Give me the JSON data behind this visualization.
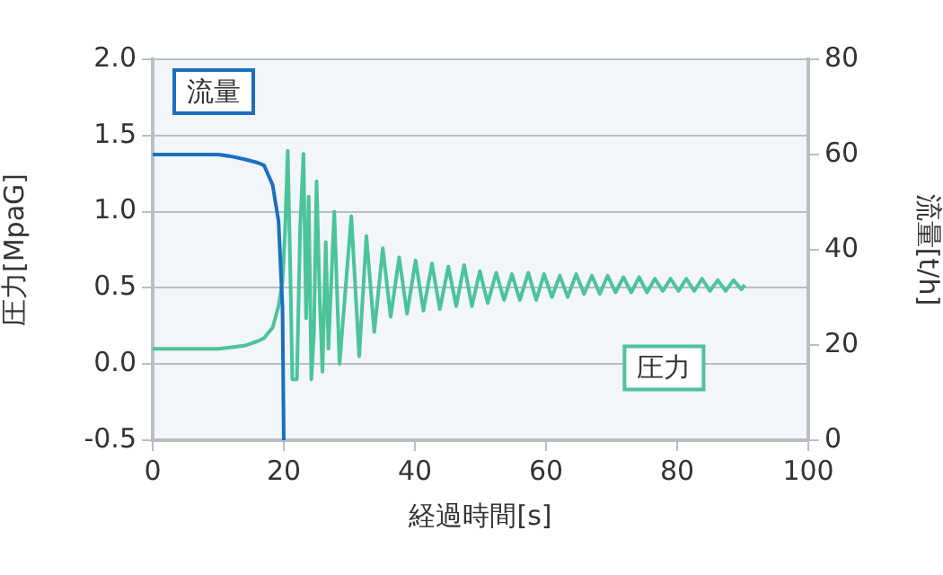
{
  "chart_data": {
    "type": "line",
    "xlabel": "経過時間[s]",
    "ylabel": "圧力[MpaG]",
    "y2label": "流量[t/h]",
    "xlim": [
      0,
      100
    ],
    "xticks": [
      0,
      20,
      40,
      60,
      80,
      100
    ],
    "ylim": [
      -0.5,
      2.0
    ],
    "yticks": [
      {
        "value": -0.5,
        "label": "-0.5"
      },
      {
        "value": 0,
        "label": "0.0"
      },
      {
        "value": 0.5,
        "label": "0.5"
      },
      {
        "value": 1,
        "label": "1.0"
      },
      {
        "value": 1.5,
        "label": "1.5"
      },
      {
        "value": 2,
        "label": "2.0"
      }
    ],
    "y2lim": [
      0,
      80
    ],
    "y2ticks": [
      0,
      20,
      40,
      60,
      80
    ],
    "grid": "y",
    "legend": false,
    "marker": "none",
    "line_style": "solid",
    "series": [
      {
        "name": "流量",
        "color": "#1a6fc0",
        "axis": "y2",
        "x": [
          0,
          5,
          10,
          12,
          14,
          16,
          17,
          18.3,
          19.2,
          19.8,
          20
        ],
        "values": [
          60,
          60,
          60,
          59.6,
          59,
          58.3,
          57.7,
          53.6,
          46,
          28,
          0
        ]
      },
      {
        "name": "圧力",
        "color": "#4cc49a",
        "x": [
          0,
          5,
          10,
          14,
          16,
          17,
          18.3,
          19.2,
          19.8,
          20.2,
          20.6,
          21.0,
          21.3,
          22.0,
          22.5,
          23.0,
          23.4,
          23.8,
          24.2,
          24.6,
          25.0,
          25.5,
          25.9,
          26.4,
          26.8,
          27.7,
          28.5,
          30.3,
          31.5,
          32.6,
          33.8,
          35.1,
          36.3,
          37.6,
          38.8,
          40.1,
          41.3,
          42.6,
          43.8,
          45.1,
          46.3,
          47.5,
          48.7,
          49.9,
          51.1,
          52.4,
          53.6,
          54.8,
          56.0,
          57.3,
          58.5,
          59.7,
          60.9,
          62.1,
          63.3,
          64.6,
          65.8,
          67.0,
          68.2,
          69.4,
          70.6,
          71.8,
          73.0,
          74.2,
          75.4,
          76.6,
          77.8,
          79.0,
          80.2,
          81.4,
          82.6,
          83.8,
          85.0,
          86.2,
          87.4,
          88.6,
          89.8,
          90.3
        ],
        "values": [
          0.1,
          0.1,
          0.1,
          0.12,
          0.15,
          0.17,
          0.24,
          0.38,
          0.54,
          0.88,
          1.4,
          0.6,
          -0.1,
          -0.1,
          0.9,
          1.38,
          0.3,
          1.1,
          -0.1,
          0.2,
          1.2,
          0.4,
          -0.05,
          0.8,
          0.1,
          1.0,
          0.0,
          0.97,
          0.05,
          0.84,
          0.21,
          0.76,
          0.31,
          0.7,
          0.33,
          0.68,
          0.35,
          0.66,
          0.36,
          0.64,
          0.38,
          0.65,
          0.38,
          0.61,
          0.4,
          0.6,
          0.42,
          0.59,
          0.42,
          0.6,
          0.42,
          0.59,
          0.44,
          0.58,
          0.44,
          0.59,
          0.46,
          0.58,
          0.46,
          0.58,
          0.47,
          0.57,
          0.47,
          0.57,
          0.47,
          0.56,
          0.48,
          0.56,
          0.48,
          0.56,
          0.48,
          0.56,
          0.48,
          0.55,
          0.48,
          0.55,
          0.49,
          0.52
        ]
      }
    ]
  }
}
